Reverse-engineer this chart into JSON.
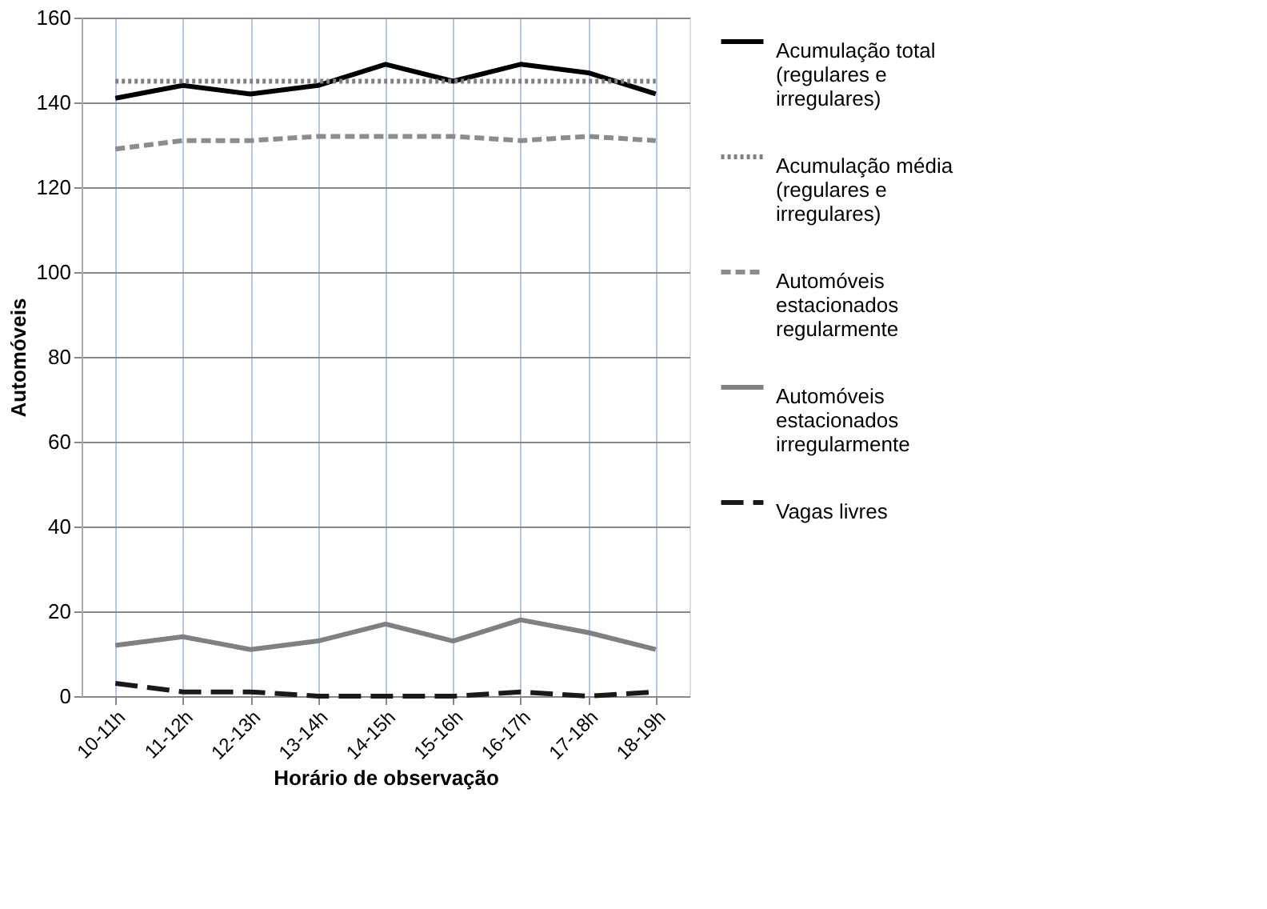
{
  "chart_data": {
    "type": "line",
    "xlabel": "Horário de observação",
    "ylabel": "Automóveis",
    "categories": [
      "10-11h",
      "11-12h",
      "12-13h",
      "13-14h",
      "14-15h",
      "15-16h",
      "16-17h",
      "17-18h",
      "18-19h"
    ],
    "series": [
      {
        "name": "Acumulação total (regulares e irregulares)",
        "color": "#000000",
        "line_style": "solid",
        "values": [
          141,
          144,
          142,
          144,
          149,
          145,
          149,
          147,
          142
        ]
      },
      {
        "name": "Acumulação média (regulares e irregulares)",
        "color": "#808080",
        "line_style": "dotted",
        "values": [
          145,
          145,
          145,
          145,
          145,
          145,
          145,
          145,
          145
        ]
      },
      {
        "name": "Automóveis estacionados regularmente",
        "color": "#8c8c8c",
        "line_style": "dashed",
        "values": [
          129,
          131,
          131,
          132,
          132,
          132,
          131,
          132,
          131
        ]
      },
      {
        "name": "Automóveis estacionados irregularmente",
        "color": "#808080",
        "line_style": "solid",
        "values": [
          12,
          14,
          11,
          13,
          17,
          13,
          18,
          15,
          11
        ]
      },
      {
        "name": "Vagas livres",
        "color": "#1a1a1a",
        "line_style": "longdash",
        "values": [
          3,
          1,
          1,
          0,
          0,
          0,
          1,
          0,
          1
        ]
      }
    ],
    "ylim": [
      0,
      160
    ],
    "yticks": [
      0,
      20,
      40,
      60,
      80,
      100,
      120,
      140,
      160
    ],
    "grid": true,
    "legend": "right",
    "marker": "none"
  }
}
